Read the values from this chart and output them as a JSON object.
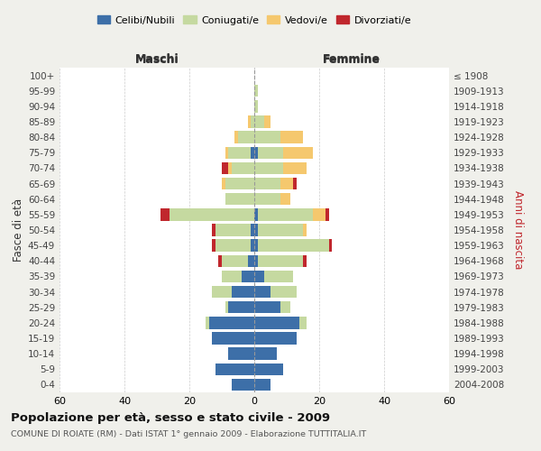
{
  "age_groups": [
    "0-4",
    "5-9",
    "10-14",
    "15-19",
    "20-24",
    "25-29",
    "30-34",
    "35-39",
    "40-44",
    "45-49",
    "50-54",
    "55-59",
    "60-64",
    "65-69",
    "70-74",
    "75-79",
    "80-84",
    "85-89",
    "90-94",
    "95-99",
    "100+"
  ],
  "birth_years": [
    "2004-2008",
    "1999-2003",
    "1994-1998",
    "1989-1993",
    "1984-1988",
    "1979-1983",
    "1974-1978",
    "1969-1973",
    "1964-1968",
    "1959-1963",
    "1954-1958",
    "1949-1953",
    "1944-1948",
    "1939-1943",
    "1934-1938",
    "1929-1933",
    "1924-1928",
    "1919-1923",
    "1914-1918",
    "1909-1913",
    "≤ 1908"
  ],
  "male": {
    "celibi": [
      7,
      12,
      8,
      13,
      14,
      8,
      7,
      4,
      2,
      1,
      1,
      0,
      0,
      0,
      0,
      1,
      0,
      0,
      0,
      0,
      0
    ],
    "coniugati": [
      0,
      0,
      0,
      0,
      1,
      1,
      6,
      6,
      8,
      11,
      11,
      26,
      9,
      9,
      7,
      7,
      5,
      1,
      0,
      0,
      0
    ],
    "vedovi": [
      0,
      0,
      0,
      0,
      0,
      0,
      0,
      0,
      0,
      0,
      0,
      0,
      0,
      1,
      1,
      1,
      1,
      1,
      0,
      0,
      0
    ],
    "divorziati": [
      0,
      0,
      0,
      0,
      0,
      0,
      0,
      0,
      1,
      1,
      1,
      3,
      0,
      0,
      2,
      0,
      0,
      0,
      0,
      0,
      0
    ]
  },
  "female": {
    "nubili": [
      5,
      9,
      7,
      13,
      14,
      8,
      5,
      3,
      1,
      1,
      1,
      1,
      0,
      0,
      0,
      1,
      0,
      0,
      0,
      0,
      0
    ],
    "coniugate": [
      0,
      0,
      0,
      0,
      2,
      3,
      8,
      9,
      14,
      22,
      14,
      17,
      8,
      8,
      9,
      8,
      8,
      3,
      1,
      1,
      0
    ],
    "vedove": [
      0,
      0,
      0,
      0,
      0,
      0,
      0,
      0,
      0,
      0,
      1,
      4,
      3,
      4,
      7,
      9,
      7,
      2,
      0,
      0,
      0
    ],
    "divorziate": [
      0,
      0,
      0,
      0,
      0,
      0,
      0,
      0,
      1,
      1,
      0,
      1,
      0,
      1,
      0,
      0,
      0,
      0,
      0,
      0,
      0
    ]
  },
  "colors": {
    "celibi": "#3d6fa8",
    "coniugati": "#c5d9a0",
    "vedovi": "#f5c86e",
    "divorziati": "#c0272d"
  },
  "xlim": 60,
  "title": "Popolazione per età, sesso e stato civile - 2009",
  "subtitle": "COMUNE DI ROIATE (RM) - Dati ISTAT 1° gennaio 2009 - Elaborazione TUTTITALIA.IT",
  "ylabel_left": "Fasce di età",
  "ylabel_right": "Anni di nascita",
  "xlabel_left": "Maschi",
  "xlabel_right": "Femmine",
  "bg_color": "#f0f0eb",
  "plot_bg": "#ffffff",
  "legend_labels": [
    "Celibi/Nubili",
    "Coniugati/e",
    "Vedovi/e",
    "Divorziati/e"
  ]
}
